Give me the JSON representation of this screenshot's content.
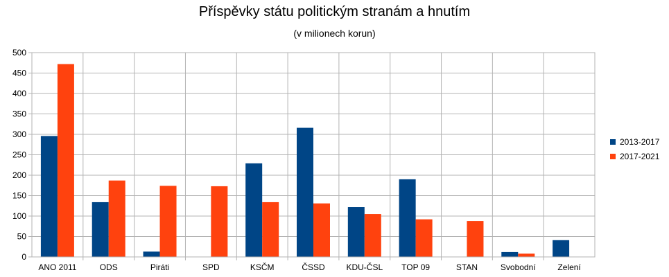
{
  "chart_data": {
    "type": "bar",
    "title": "Příspěvky státu politickým stranám a hnutím",
    "subtitle": "(v milionech korun)",
    "categories": [
      "ANO 2011",
      "ODS",
      "Piráti",
      "SPD",
      "KSČM",
      "ČSSD",
      "KDU-ČSL",
      "TOP 09",
      "STAN",
      "Svobodní",
      "Zelení"
    ],
    "series": [
      {
        "name": "2013-2017",
        "color": "#004586",
        "values": [
          296,
          134,
          13,
          0,
          229,
          316,
          122,
          190,
          0,
          12,
          41
        ]
      },
      {
        "name": "2017-2021",
        "color": "#ff420e",
        "values": [
          472,
          187,
          174,
          173,
          134,
          131,
          105,
          92,
          88,
          8,
          0
        ]
      }
    ],
    "yticks": [
      "0",
      "50",
      "100",
      "150",
      "200",
      "250",
      "300",
      "350",
      "400",
      "450",
      "500"
    ],
    "ylim": [
      0,
      500
    ],
    "grid": true,
    "legend_position": "right"
  }
}
